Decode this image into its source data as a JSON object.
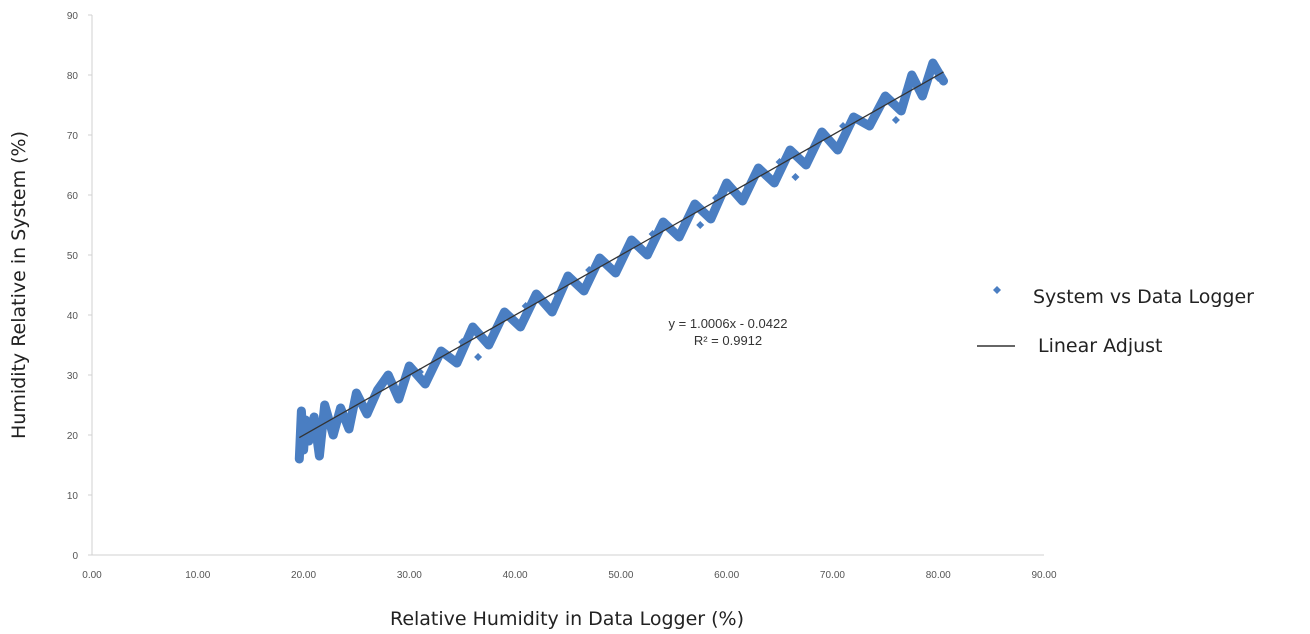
{
  "chart_data": {
    "type": "scatter",
    "xlabel": "Relative Humidity in Data Logger (%)",
    "ylabel": "Humidity Relative in System (%)",
    "xlim": [
      0,
      90
    ],
    "ylim": [
      0,
      90
    ],
    "x_ticks": [
      "0.00",
      "10.00",
      "20.00",
      "30.00",
      "40.00",
      "50.00",
      "60.00",
      "70.00",
      "80.00",
      "90.00"
    ],
    "y_ticks": [
      "0",
      "10",
      "20",
      "30",
      "40",
      "50",
      "60",
      "70",
      "80",
      "90"
    ],
    "grid": false,
    "legend_position": "right",
    "series": [
      {
        "name": "System vs Data Logger",
        "color": "#4A7EC2",
        "x": [
          19.6,
          19.8,
          20.0,
          20.2,
          20.5,
          21.0,
          21.5,
          22.0,
          22.8,
          23.5,
          24.3,
          25.0,
          26.0,
          27.0,
          28.0,
          29.0,
          30.0,
          31.5,
          33.0,
          34.5,
          36.0,
          37.5,
          39.0,
          40.5,
          42.0,
          43.5,
          45.0,
          46.5,
          48.0,
          49.5,
          51.0,
          52.5,
          54.0,
          55.5,
          57.0,
          58.5,
          60.0,
          61.5,
          63.0,
          64.5,
          66.0,
          67.5,
          69.0,
          70.5,
          72.0,
          73.5,
          75.0,
          76.5,
          77.5,
          78.5,
          79.5,
          80.5,
          21.0,
          23.0,
          25.5,
          28.5,
          31.0,
          35.0,
          38.0,
          41.0,
          44.0,
          47.0,
          50.0,
          53.0,
          56.0,
          59.0,
          62.0,
          65.0,
          68.0,
          71.0,
          74.0,
          77.0,
          80.0,
          36.5,
          57.5,
          66.5,
          76.0
        ],
        "y": [
          16.0,
          24.0,
          17.5,
          22.5,
          19.0,
          23.0,
          16.5,
          25.0,
          20.0,
          24.5,
          21.0,
          27.0,
          23.5,
          27.5,
          30.0,
          26.0,
          31.5,
          28.5,
          34.0,
          32.0,
          38.0,
          35.0,
          40.5,
          38.0,
          43.5,
          40.5,
          46.5,
          44.0,
          49.5,
          47.0,
          52.5,
          50.0,
          55.5,
          53.0,
          58.5,
          56.0,
          62.0,
          59.0,
          64.5,
          62.0,
          67.5,
          65.0,
          70.5,
          67.5,
          73.0,
          71.5,
          76.5,
          74.0,
          80.0,
          76.5,
          82.0,
          79.0,
          21.0,
          22.5,
          25.0,
          28.5,
          30.5,
          35.5,
          37.5,
          41.5,
          43.5,
          47.5,
          49.5,
          53.5,
          55.5,
          59.5,
          61.5,
          65.5,
          67.5,
          71.5,
          73.5,
          77.5,
          79.5,
          33.0,
          55.0,
          63.0,
          72.5
        ]
      },
      {
        "name": "Linear Adjust",
        "color": "#333333",
        "type": "line",
        "slope": 1.0006,
        "intercept": -0.0422,
        "x_range": [
          19.6,
          80.5
        ]
      }
    ],
    "annotations": [
      "y = 1.0006x - 0.0422",
      "R² = 0.9912"
    ]
  }
}
